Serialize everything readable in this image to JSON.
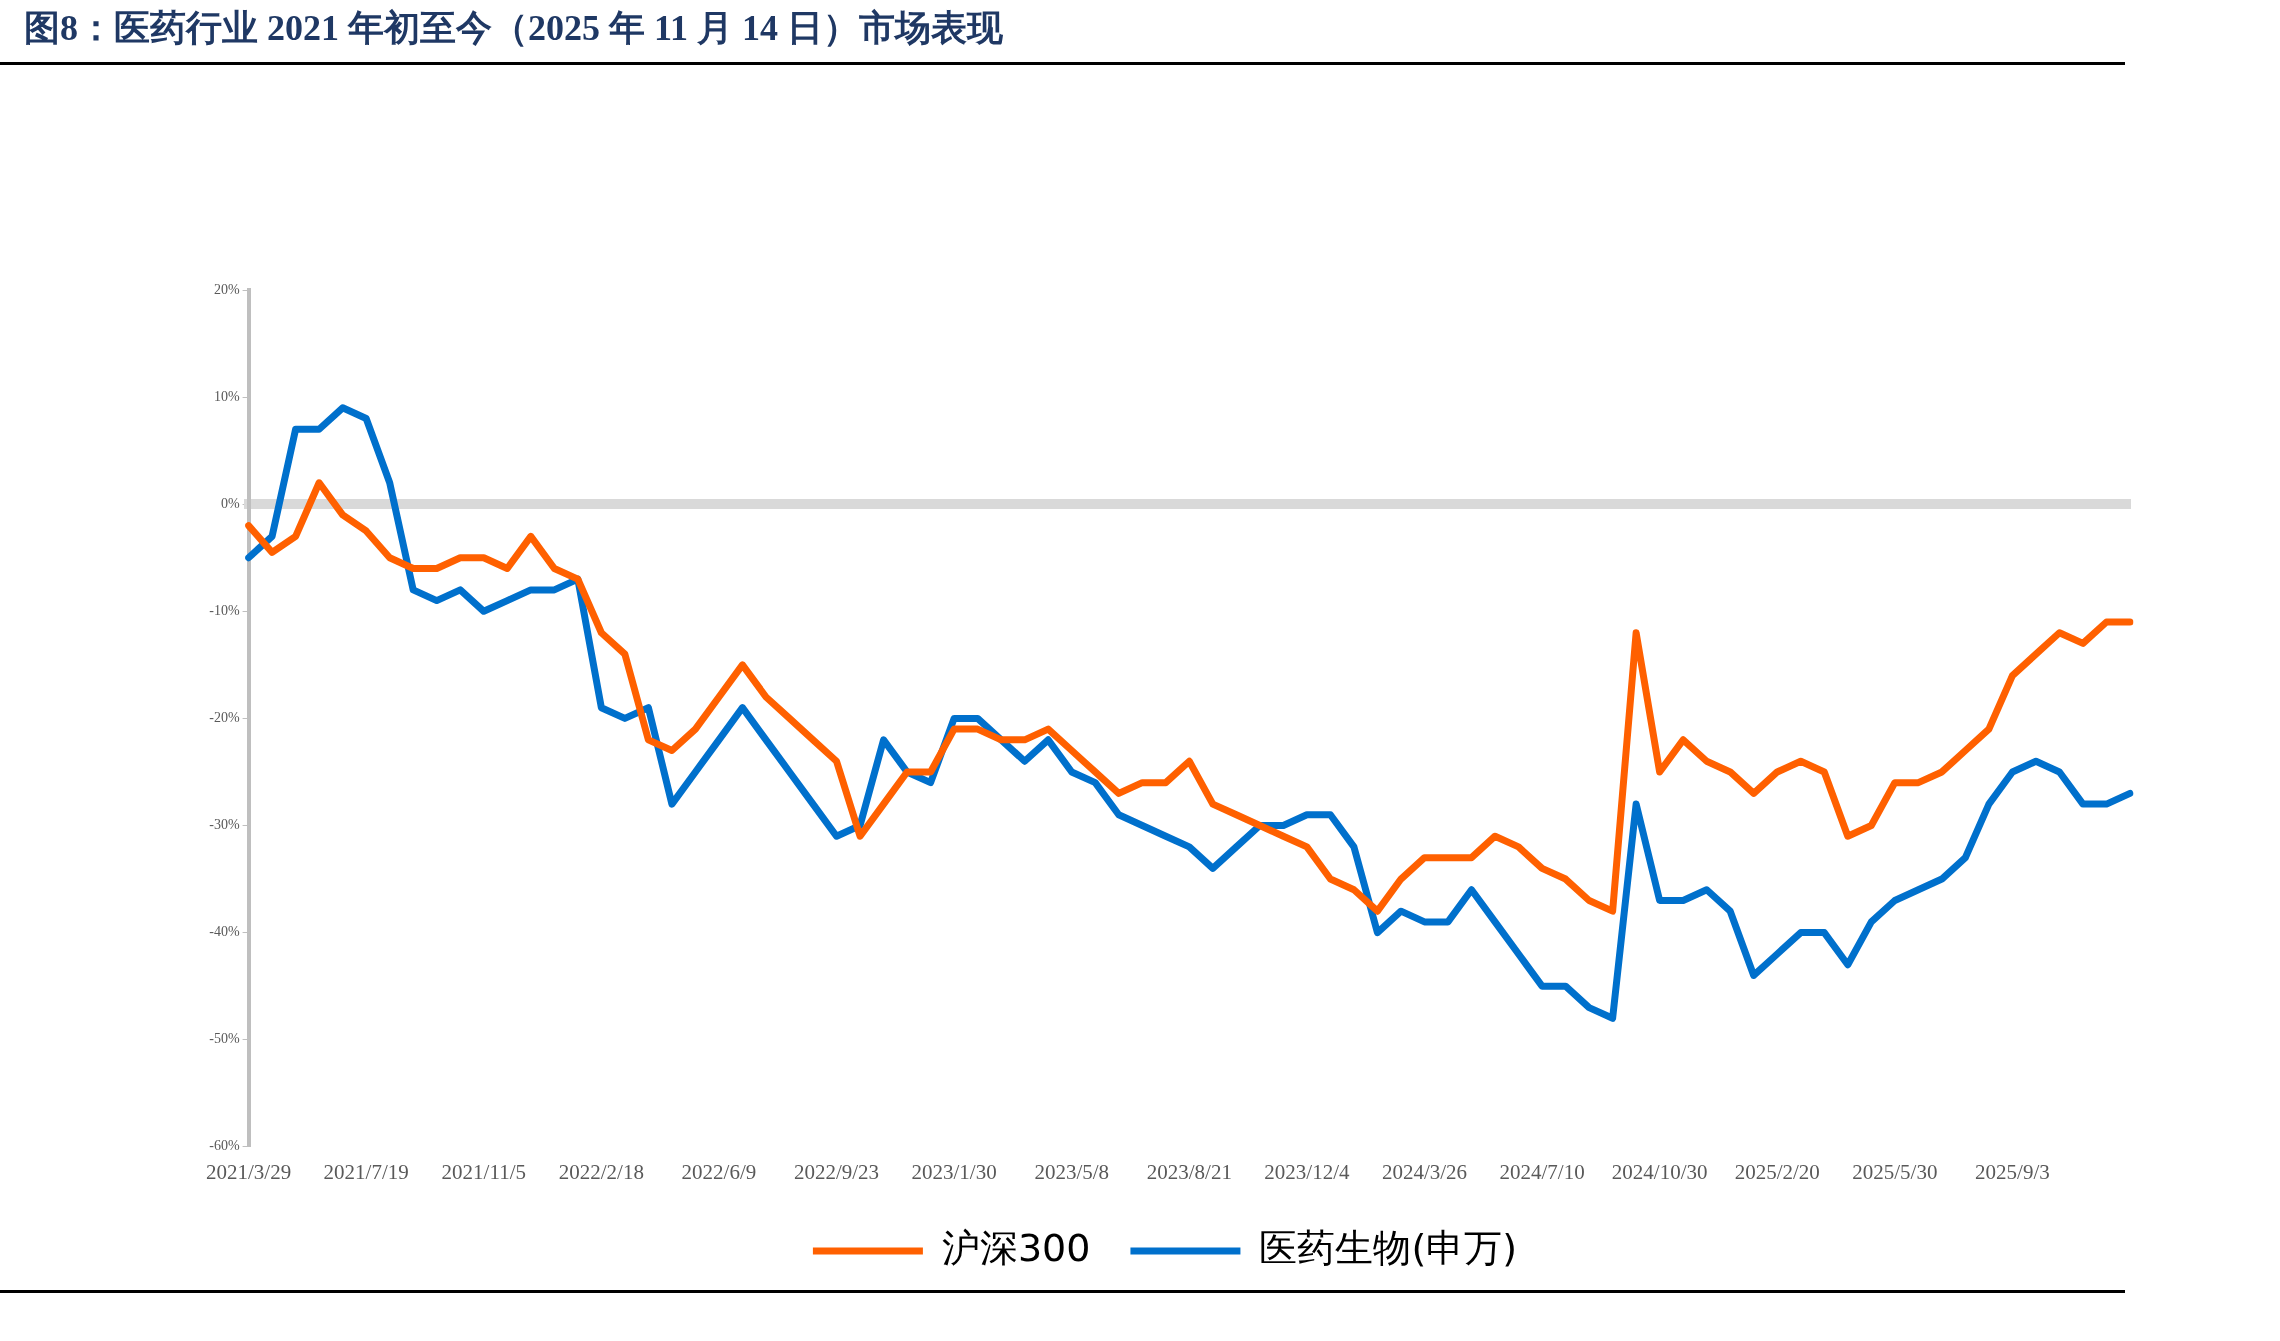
{
  "chart_data": {
    "type": "line",
    "title": "图8：医药行业 2021 年初至今（2025 年 11 月 14 日）市场表现",
    "categories": [
      "2021/3/29",
      null,
      null,
      null,
      null,
      "2021/7/19",
      null,
      null,
      null,
      null,
      "2021/11/5",
      null,
      null,
      null,
      null,
      "2022/2/18",
      null,
      null,
      null,
      null,
      "2022/6/9",
      null,
      null,
      null,
      null,
      "2022/9/23",
      null,
      null,
      null,
      null,
      "2023/1/30",
      null,
      null,
      null,
      null,
      "2023/5/8",
      null,
      null,
      null,
      null,
      "2023/8/21",
      null,
      null,
      null,
      null,
      "2023/12/4",
      null,
      null,
      null,
      null,
      "2024/3/26",
      null,
      null,
      null,
      null,
      "2024/7/10",
      null,
      null,
      null,
      null,
      "2024/10/30",
      null,
      null,
      null,
      null,
      "2025/2/20",
      null,
      null,
      null,
      null,
      "2025/5/30",
      null,
      null,
      null,
      null,
      "2025/9/3",
      null,
      null,
      null,
      null,
      null
    ],
    "series": [
      {
        "name": "沪深300",
        "color": "#ff6000",
        "values": [
          -2,
          -4.5,
          -3,
          2,
          -1,
          -2.5,
          -5,
          -6,
          -6,
          -5,
          -5,
          -6,
          -3,
          -6,
          -7,
          -12,
          -14,
          -22,
          -23,
          -21,
          -18,
          -15,
          -18,
          -20,
          -22,
          -24,
          -31,
          -28,
          -25,
          -25,
          -21,
          -21,
          -22,
          -22,
          -21,
          -23,
          -25,
          -27,
          -26,
          -26,
          -24,
          -28,
          -29,
          -30,
          -31,
          -32,
          -35,
          -36,
          -38,
          -35,
          -33,
          -33,
          -33,
          -31,
          -32,
          -34,
          -35,
          -37,
          -38,
          -12,
          -25,
          -22,
          -24,
          -25,
          -27,
          -25,
          -24,
          -25,
          -31,
          -30,
          -26,
          -26,
          -25,
          -23,
          -21,
          -16,
          -14,
          -12,
          -13,
          -11,
          -11
        ]
      },
      {
        "name": "医药生物(申万)",
        "color": "#0070cc",
        "values": [
          -5,
          -3,
          7,
          7,
          9,
          8,
          2,
          -8,
          -9,
          -8,
          -10,
          -9,
          -8,
          -8,
          -7,
          -19,
          -20,
          -19,
          -28,
          -25,
          -22,
          -19,
          -22,
          -25,
          -28,
          -31,
          -30,
          -22,
          -25,
          -26,
          -20,
          -20,
          -22,
          -24,
          -22,
          -25,
          -26,
          -29,
          -30,
          -31,
          -32,
          -34,
          -32,
          -30,
          -30,
          -29,
          -29,
          -32,
          -40,
          -38,
          -39,
          -39,
          -36,
          -39,
          -42,
          -45,
          -45,
          -47,
          -48,
          -28,
          -37,
          -37,
          -36,
          -38,
          -44,
          -42,
          -40,
          -40,
          -43,
          -39,
          -37,
          -36,
          -35,
          -33,
          -28,
          -25,
          -24,
          -25,
          -28,
          -28,
          -27
        ]
      }
    ],
    "ylim": [
      -60,
      20
    ],
    "yticks": [
      {
        "value": -60,
        "label": "-60%"
      },
      {
        "value": -50,
        "label": "-50%"
      },
      {
        "value": -40,
        "label": "-40%"
      },
      {
        "value": -30,
        "label": "-30%"
      },
      {
        "value": -20,
        "label": "-20%"
      },
      {
        "value": -10,
        "label": "-10%"
      },
      {
        "value": 0,
        "label": "0%"
      },
      {
        "value": 10,
        "label": "10%"
      },
      {
        "value": 20,
        "label": "20%"
      }
    ],
    "legend": "bottom",
    "marker": "none",
    "line_style": "solid"
  }
}
